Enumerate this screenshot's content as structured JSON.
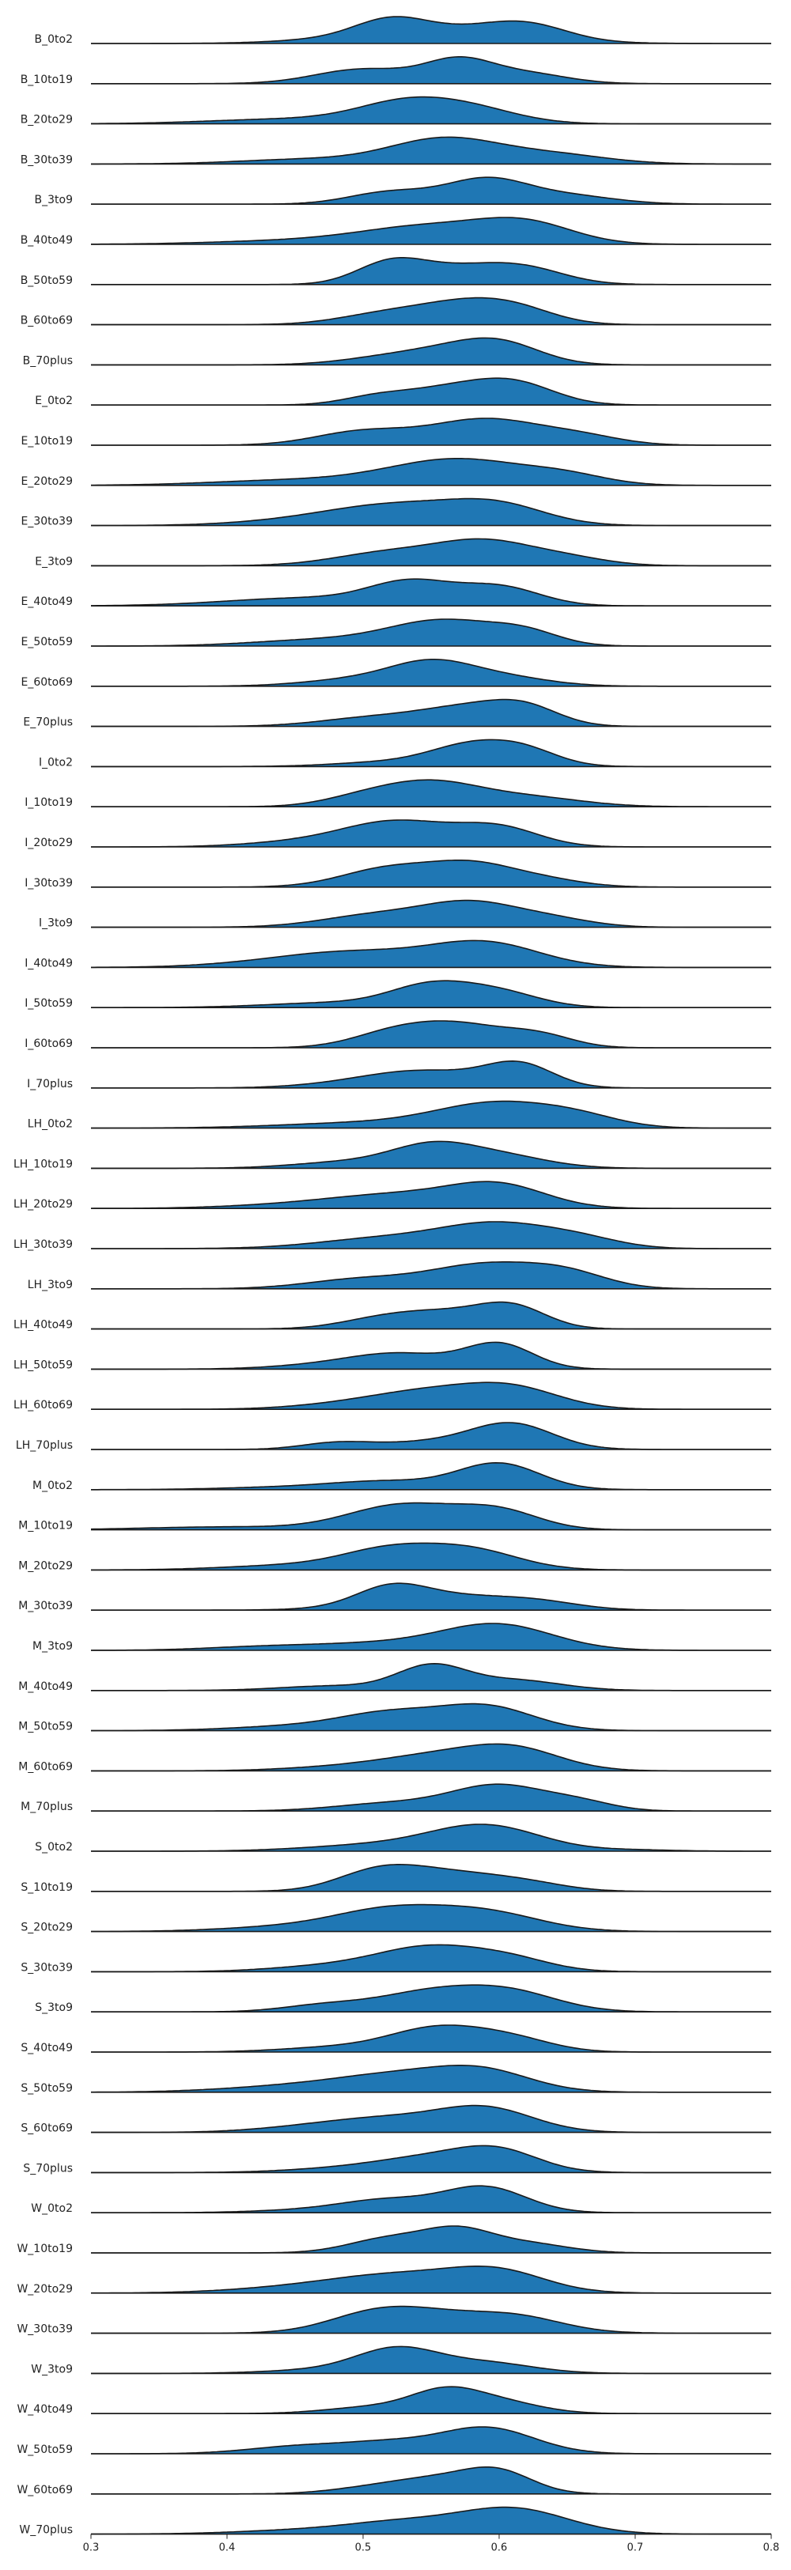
{
  "chart_data": {
    "type": "ridgeline",
    "title": "",
    "xlabel": "",
    "ylabel": "",
    "xlim": [
      0.3,
      0.8
    ],
    "xticks": [
      "0.3",
      "0.4",
      "0.5",
      "0.6",
      "0.7",
      "0.8"
    ],
    "grid": false,
    "legend": "none",
    "fill_color": "#1f77b4",
    "line_color": "#1a1a1a",
    "series": [
      {
        "name": "B_0to2",
        "peaks": [
          [
            0.52,
            0.025,
            0.8
          ],
          [
            0.55,
            0.06,
            0.9
          ],
          [
            0.62,
            0.03,
            0.85
          ]
        ]
      },
      {
        "name": "B_10to19",
        "peaks": [
          [
            0.5,
            0.035,
            0.65
          ],
          [
            0.57,
            0.025,
            1.0
          ],
          [
            0.62,
            0.03,
            0.45
          ]
        ]
      },
      {
        "name": "B_20to29",
        "peaks": [
          [
            0.53,
            0.035,
            0.95
          ],
          [
            0.58,
            0.035,
            0.7
          ],
          [
            0.45,
            0.06,
            0.25
          ]
        ]
      },
      {
        "name": "B_30to39",
        "peaks": [
          [
            0.56,
            0.04,
            0.95
          ],
          [
            0.46,
            0.05,
            0.18
          ],
          [
            0.64,
            0.04,
            0.35
          ]
        ]
      },
      {
        "name": "B_3to9",
        "peaks": [
          [
            0.52,
            0.03,
            0.5
          ],
          [
            0.59,
            0.03,
            1.0
          ],
          [
            0.65,
            0.035,
            0.35
          ]
        ]
      },
      {
        "name": "B_40to49",
        "peaks": [
          [
            0.55,
            0.05,
            0.75
          ],
          [
            0.62,
            0.035,
            0.8
          ],
          [
            0.45,
            0.06,
            0.15
          ]
        ]
      },
      {
        "name": "B_50to59",
        "peaks": [
          [
            0.52,
            0.025,
            0.8
          ],
          [
            0.57,
            0.035,
            0.6
          ],
          [
            0.62,
            0.03,
            0.55
          ]
        ]
      },
      {
        "name": "B_60to69",
        "peaks": [
          [
            0.52,
            0.035,
            0.6
          ],
          [
            0.57,
            0.03,
            0.75
          ],
          [
            0.61,
            0.03,
            0.85
          ]
        ]
      },
      {
        "name": "B_70plus",
        "peaks": [
          [
            0.52,
            0.035,
            0.35
          ],
          [
            0.6,
            0.03,
            1.0
          ],
          [
            0.56,
            0.03,
            0.4
          ]
        ]
      },
      {
        "name": "E_0to2",
        "peaks": [
          [
            0.51,
            0.025,
            0.35
          ],
          [
            0.56,
            0.03,
            0.6
          ],
          [
            0.61,
            0.03,
            0.95
          ]
        ]
      },
      {
        "name": "E_10to19",
        "peaks": [
          [
            0.5,
            0.035,
            0.5
          ],
          [
            0.59,
            0.04,
            0.95
          ],
          [
            0.66,
            0.03,
            0.3
          ]
        ]
      },
      {
        "name": "E_20to29",
        "peaks": [
          [
            0.57,
            0.05,
            1.0
          ],
          [
            0.45,
            0.06,
            0.2
          ],
          [
            0.65,
            0.03,
            0.3
          ]
        ]
      },
      {
        "name": "E_30to39",
        "peaks": [
          [
            0.53,
            0.05,
            0.85
          ],
          [
            0.6,
            0.035,
            0.75
          ],
          [
            0.46,
            0.05,
            0.2
          ]
        ]
      },
      {
        "name": "E_3to9",
        "peaks": [
          [
            0.52,
            0.04,
            0.55
          ],
          [
            0.59,
            0.035,
            0.95
          ],
          [
            0.65,
            0.03,
            0.3
          ]
        ]
      },
      {
        "name": "E_40to49",
        "peaks": [
          [
            0.535,
            0.03,
            0.8
          ],
          [
            0.6,
            0.03,
            0.7
          ],
          [
            0.46,
            0.06,
            0.3
          ]
        ]
      },
      {
        "name": "E_50to59",
        "peaks": [
          [
            0.56,
            0.04,
            1.0
          ],
          [
            0.62,
            0.025,
            0.45
          ],
          [
            0.47,
            0.05,
            0.25
          ]
        ]
      },
      {
        "name": "E_60to69",
        "peaks": [
          [
            0.55,
            0.03,
            0.95
          ],
          [
            0.5,
            0.04,
            0.35
          ],
          [
            0.6,
            0.035,
            0.45
          ]
        ]
      },
      {
        "name": "E_70plus",
        "peaks": [
          [
            0.51,
            0.04,
            0.45
          ],
          [
            0.58,
            0.035,
            0.9
          ],
          [
            0.62,
            0.025,
            0.75
          ]
        ]
      },
      {
        "name": "I_0to2",
        "peaks": [
          [
            0.58,
            0.03,
            0.9
          ],
          [
            0.62,
            0.025,
            0.6
          ],
          [
            0.52,
            0.04,
            0.2
          ]
        ]
      },
      {
        "name": "I_10to19",
        "peaks": [
          [
            0.55,
            0.035,
            0.95
          ],
          [
            0.5,
            0.03,
            0.35
          ],
          [
            0.62,
            0.04,
            0.4
          ]
        ]
      },
      {
        "name": "I_20to29",
        "peaks": [
          [
            0.525,
            0.04,
            0.9
          ],
          [
            0.6,
            0.03,
            0.65
          ],
          [
            0.45,
            0.04,
            0.15
          ]
        ]
      },
      {
        "name": "I_30to39",
        "peaks": [
          [
            0.52,
            0.035,
            0.85
          ],
          [
            0.58,
            0.03,
            0.9
          ],
          [
            0.63,
            0.03,
            0.35
          ]
        ]
      },
      {
        "name": "I_3to9",
        "peaks": [
          [
            0.51,
            0.04,
            0.5
          ],
          [
            0.58,
            0.035,
            0.95
          ],
          [
            0.64,
            0.03,
            0.3
          ]
        ]
      },
      {
        "name": "I_40to49",
        "peaks": [
          [
            0.5,
            0.05,
            0.45
          ],
          [
            0.59,
            0.04,
            0.8
          ],
          [
            0.44,
            0.05,
            0.15
          ]
        ]
      },
      {
        "name": "I_50to59",
        "peaks": [
          [
            0.55,
            0.03,
            0.85
          ],
          [
            0.6,
            0.03,
            0.6
          ],
          [
            0.48,
            0.05,
            0.2
          ]
        ]
      },
      {
        "name": "I_60to69",
        "peaks": [
          [
            0.52,
            0.03,
            0.55
          ],
          [
            0.57,
            0.035,
            1.0
          ],
          [
            0.63,
            0.025,
            0.5
          ]
        ]
      },
      {
        "name": "I_70plus",
        "peaks": [
          [
            0.55,
            0.04,
            0.6
          ],
          [
            0.615,
            0.025,
            0.9
          ],
          [
            0.5,
            0.04,
            0.2
          ]
        ]
      },
      {
        "name": "LH_0to2",
        "peaks": [
          [
            0.6,
            0.045,
            0.95
          ],
          [
            0.5,
            0.06,
            0.2
          ],
          [
            0.66,
            0.03,
            0.3
          ]
        ]
      },
      {
        "name": "LH_10to19",
        "peaks": [
          [
            0.55,
            0.03,
            0.95
          ],
          [
            0.6,
            0.035,
            0.6
          ],
          [
            0.49,
            0.04,
            0.3
          ]
        ]
      },
      {
        "name": "LH_20to29",
        "peaks": [
          [
            0.53,
            0.05,
            0.6
          ],
          [
            0.6,
            0.035,
            0.95
          ],
          [
            0.45,
            0.05,
            0.15
          ]
        ]
      },
      {
        "name": "LH_30to39",
        "peaks": [
          [
            0.52,
            0.05,
            0.45
          ],
          [
            0.6,
            0.04,
            0.95
          ],
          [
            0.66,
            0.03,
            0.35
          ]
        ]
      },
      {
        "name": "LH_3to9",
        "peaks": [
          [
            0.5,
            0.04,
            0.35
          ],
          [
            0.59,
            0.04,
            0.85
          ],
          [
            0.65,
            0.03,
            0.5
          ]
        ]
      },
      {
        "name": "LH_40to49",
        "peaks": [
          [
            0.51,
            0.03,
            0.35
          ],
          [
            0.56,
            0.035,
            0.7
          ],
          [
            0.61,
            0.025,
            0.9
          ]
        ]
      },
      {
        "name": "LH_50to59",
        "peaks": [
          [
            0.53,
            0.035,
            0.55
          ],
          [
            0.6,
            0.025,
            1.0
          ],
          [
            0.48,
            0.04,
            0.2
          ]
        ]
      },
      {
        "name": "LH_60to69",
        "peaks": [
          [
            0.55,
            0.04,
            0.65
          ],
          [
            0.61,
            0.035,
            0.8
          ],
          [
            0.49,
            0.04,
            0.2
          ]
        ]
      },
      {
        "name": "LH_70plus",
        "peaks": [
          [
            0.48,
            0.025,
            0.25
          ],
          [
            0.61,
            0.03,
            1.0
          ],
          [
            0.55,
            0.04,
            0.3
          ]
        ]
      },
      {
        "name": "M_0to2",
        "peaks": [
          [
            0.6,
            0.03,
            1.0
          ],
          [
            0.52,
            0.04,
            0.3
          ],
          [
            0.45,
            0.05,
            0.1
          ]
        ]
      },
      {
        "name": "M_10to19",
        "peaks": [
          [
            0.53,
            0.04,
            0.85
          ],
          [
            0.6,
            0.03,
            0.6
          ],
          [
            0.4,
            0.06,
            0.1
          ]
        ]
      },
      {
        "name": "M_20to29",
        "peaks": [
          [
            0.52,
            0.035,
            0.8
          ],
          [
            0.58,
            0.035,
            0.8
          ],
          [
            0.45,
            0.05,
            0.2
          ]
        ]
      },
      {
        "name": "M_30to39",
        "peaks": [
          [
            0.52,
            0.025,
            0.85
          ],
          [
            0.56,
            0.05,
            0.8
          ],
          [
            0.63,
            0.03,
            0.3
          ]
        ]
      },
      {
        "name": "M_3to9",
        "peaks": [
          [
            0.6,
            0.04,
            0.95
          ],
          [
            0.52,
            0.06,
            0.3
          ],
          [
            0.42,
            0.04,
            0.1
          ]
        ]
      },
      {
        "name": "M_40to49",
        "peaks": [
          [
            0.55,
            0.025,
            1.0
          ],
          [
            0.61,
            0.035,
            0.45
          ],
          [
            0.48,
            0.04,
            0.2
          ]
        ]
      },
      {
        "name": "M_50to59",
        "peaks": [
          [
            0.52,
            0.035,
            0.6
          ],
          [
            0.59,
            0.035,
            0.95
          ],
          [
            0.46,
            0.05,
            0.2
          ]
        ]
      },
      {
        "name": "M_60to69",
        "peaks": [
          [
            0.55,
            0.04,
            0.6
          ],
          [
            0.61,
            0.035,
            0.95
          ],
          [
            0.48,
            0.04,
            0.15
          ]
        ]
      },
      {
        "name": "M_70plus",
        "peaks": [
          [
            0.6,
            0.035,
            1.0
          ],
          [
            0.52,
            0.04,
            0.3
          ],
          [
            0.66,
            0.025,
            0.3
          ]
        ]
      },
      {
        "name": "S_0to2",
        "peaks": [
          [
            0.59,
            0.04,
            1.0
          ],
          [
            0.51,
            0.05,
            0.25
          ],
          [
            0.7,
            0.03,
            0.05
          ]
        ]
      },
      {
        "name": "S_10to19",
        "peaks": [
          [
            0.51,
            0.03,
            0.75
          ],
          [
            0.56,
            0.04,
            0.8
          ],
          [
            0.62,
            0.03,
            0.3
          ]
        ]
      },
      {
        "name": "S_20to29",
        "peaks": [
          [
            0.52,
            0.04,
            0.8
          ],
          [
            0.59,
            0.04,
            0.75
          ],
          [
            0.45,
            0.05,
            0.2
          ]
        ]
      },
      {
        "name": "S_30to39",
        "peaks": [
          [
            0.55,
            0.04,
            1.0
          ],
          [
            0.61,
            0.03,
            0.4
          ],
          [
            0.47,
            0.04,
            0.2
          ]
        ]
      },
      {
        "name": "S_3to9",
        "peaks": [
          [
            0.55,
            0.04,
            0.8
          ],
          [
            0.61,
            0.035,
            0.7
          ],
          [
            0.47,
            0.03,
            0.25
          ]
        ]
      },
      {
        "name": "S_40to49",
        "peaks": [
          [
            0.555,
            0.035,
            1.0
          ],
          [
            0.61,
            0.03,
            0.5
          ],
          [
            0.48,
            0.04,
            0.2
          ]
        ]
      },
      {
        "name": "S_50to59",
        "peaks": [
          [
            0.53,
            0.05,
            0.75
          ],
          [
            0.59,
            0.035,
            0.7
          ],
          [
            0.44,
            0.05,
            0.2
          ]
        ]
      },
      {
        "name": "S_60to69",
        "peaks": [
          [
            0.52,
            0.04,
            0.5
          ],
          [
            0.59,
            0.035,
            0.95
          ],
          [
            0.46,
            0.04,
            0.2
          ]
        ]
      },
      {
        "name": "S_70plus",
        "peaks": [
          [
            0.55,
            0.04,
            0.65
          ],
          [
            0.6,
            0.03,
            0.85
          ],
          [
            0.48,
            0.04,
            0.15
          ]
        ]
      },
      {
        "name": "W_0to2",
        "peaks": [
          [
            0.59,
            0.03,
            1.0
          ],
          [
            0.52,
            0.035,
            0.5
          ],
          [
            0.46,
            0.04,
            0.1
          ]
        ]
      },
      {
        "name": "W_10to19",
        "peaks": [
          [
            0.52,
            0.03,
            0.7
          ],
          [
            0.57,
            0.025,
            1.0
          ],
          [
            0.62,
            0.03,
            0.45
          ]
        ]
      },
      {
        "name": "W_20to29",
        "peaks": [
          [
            0.53,
            0.05,
            0.75
          ],
          [
            0.6,
            0.035,
            0.8
          ],
          [
            0.45,
            0.05,
            0.2
          ]
        ]
      },
      {
        "name": "W_30to39",
        "peaks": [
          [
            0.51,
            0.035,
            0.7
          ],
          [
            0.57,
            0.05,
            0.75
          ],
          [
            0.62,
            0.03,
            0.3
          ]
        ]
      },
      {
        "name": "W_3to9",
        "peaks": [
          [
            0.525,
            0.03,
            1.0
          ],
          [
            0.59,
            0.035,
            0.45
          ],
          [
            0.47,
            0.04,
            0.15
          ]
        ]
      },
      {
        "name": "W_40to49",
        "peaks": [
          [
            0.56,
            0.025,
            1.0
          ],
          [
            0.6,
            0.03,
            0.6
          ],
          [
            0.51,
            0.035,
            0.35
          ]
        ]
      },
      {
        "name": "W_50to59",
        "peaks": [
          [
            0.46,
            0.04,
            0.3
          ],
          [
            0.52,
            0.03,
            0.3
          ],
          [
            0.59,
            0.035,
            0.95
          ]
        ]
      },
      {
        "name": "W_60to69",
        "peaks": [
          [
            0.555,
            0.035,
            0.75
          ],
          [
            0.6,
            0.025,
            0.95
          ],
          [
            0.5,
            0.03,
            0.2
          ]
        ]
      },
      {
        "name": "W_70plus",
        "peaks": [
          [
            0.53,
            0.04,
            0.4
          ],
          [
            0.61,
            0.04,
            0.95
          ],
          [
            0.46,
            0.05,
            0.15
          ]
        ]
      }
    ]
  }
}
